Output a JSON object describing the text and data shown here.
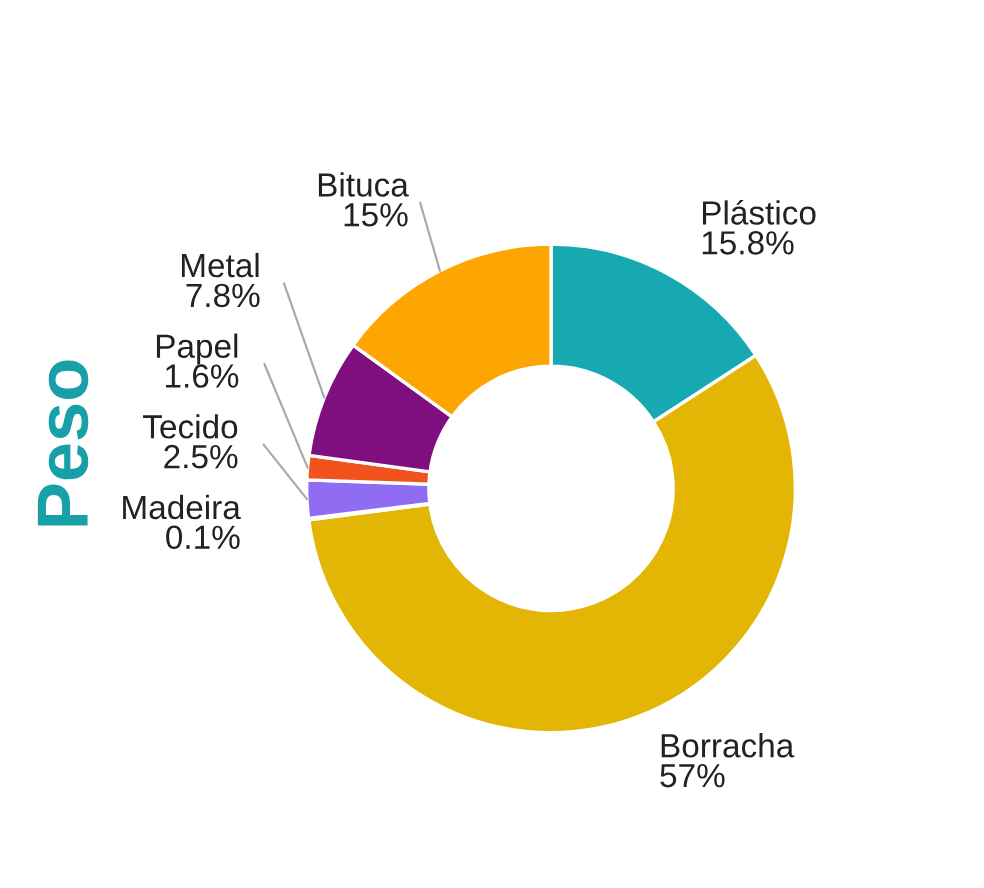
{
  "chart_data": {
    "type": "donut",
    "ylabel": "Peso",
    "categories": [
      "Plástico",
      "Borracha",
      "Madeira",
      "Tecido",
      "Papel",
      "Metal",
      "Bituca"
    ],
    "values": [
      15.8,
      57,
      0.1,
      2.5,
      1.6,
      7.8,
      15
    ],
    "colors": [
      "#17a9b1",
      "#e3b505",
      "#c8c8c8",
      "#8f6cf2",
      "#f2521d",
      "#7f0f7e",
      "#fda602"
    ],
    "value_labels": [
      "15.8%",
      "57%",
      "0.1%",
      "2.5%",
      "1.6%",
      "7.8%",
      "15%"
    ]
  }
}
